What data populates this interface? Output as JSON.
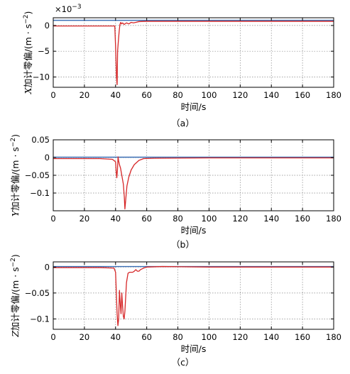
{
  "chart_data": [
    {
      "type": "line",
      "caption": "（a）",
      "xlabel": "时间/s",
      "ylabel_var": "X",
      "ylabel_rest": "加计零偏/(m · s",
      "ylabel_sup": "−2",
      "ylabel_close": ")",
      "exponent_base": "×10",
      "exponent_power": "−3",
      "xlim": [
        0,
        180
      ],
      "ylim": [
        -12,
        1.5
      ],
      "xticks": [
        0,
        20,
        40,
        60,
        80,
        100,
        120,
        140,
        160,
        180
      ],
      "yticks": [
        -10,
        -5,
        0
      ],
      "ytick_labels": [
        "−10",
        "−5",
        "0"
      ],
      "grid": true,
      "series": [
        {
          "color": "#3a6fb5",
          "x": [
            0,
            180
          ],
          "y": [
            1.0,
            1.0
          ]
        },
        {
          "color": "#d62728",
          "x": [
            0,
            39.5,
            40,
            40.6,
            41,
            41.3,
            41.8,
            42.3,
            42.8,
            43.3,
            43.8,
            44.5,
            45.5,
            47,
            48.5,
            50,
            51.5,
            53,
            55,
            60,
            100,
            180
          ],
          "y": [
            -0.1,
            -0.1,
            -4,
            -10,
            -11.5,
            -5,
            -3,
            -1.2,
            0.2,
            0.6,
            0.3,
            0.5,
            0.2,
            0.5,
            0.3,
            0.6,
            0.5,
            0.6,
            0.75,
            0.8,
            0.8,
            0.8
          ]
        }
      ]
    },
    {
      "type": "line",
      "caption": "（b）",
      "xlabel": "时间/s",
      "ylabel_var": "Y",
      "ylabel_rest": "加计零偏/(m · s",
      "ylabel_sup": "−2",
      "ylabel_close": ")",
      "xlim": [
        0,
        180
      ],
      "ylim": [
        -0.15,
        0.05
      ],
      "xticks": [
        0,
        20,
        40,
        60,
        80,
        100,
        120,
        140,
        160,
        180
      ],
      "yticks": [
        0.05,
        0,
        -0.05,
        -0.1
      ],
      "ytick_labels": [
        "0.05",
        "0",
        "−0.05",
        "−0.1"
      ],
      "grid": true,
      "series": [
        {
          "color": "#3a6fb5",
          "x": [
            0,
            180
          ],
          "y": [
            0.001,
            0.001
          ]
        },
        {
          "color": "#d62728",
          "x": [
            0,
            30,
            38,
            40,
            40.4,
            40.8,
            41.2,
            41.6,
            42,
            42.5,
            43.2,
            44,
            45,
            45.6,
            46,
            46.5,
            47.3,
            48.5,
            50,
            52,
            55,
            58,
            65,
            100,
            180
          ],
          "y": [
            -0.003,
            -0.003,
            -0.005,
            -0.012,
            -0.04,
            -0.057,
            -0.035,
            0.002,
            -0.01,
            -0.02,
            -0.03,
            -0.05,
            -0.075,
            -0.11,
            -0.145,
            -0.12,
            -0.08,
            -0.055,
            -0.035,
            -0.02,
            -0.008,
            -0.003,
            -0.002,
            -0.001,
            -0.001
          ]
        }
      ]
    },
    {
      "type": "line",
      "caption": "（c）",
      "xlabel": "时间/s",
      "ylabel_var": "Z",
      "ylabel_rest": "加计零偏/(m · s",
      "ylabel_sup": "−2",
      "ylabel_close": ")",
      "xlim": [
        0,
        180
      ],
      "ylim": [
        -0.12,
        0.01
      ],
      "xticks": [
        0,
        20,
        40,
        60,
        80,
        100,
        120,
        140,
        160,
        180
      ],
      "yticks": [
        0,
        -0.05,
        -0.1
      ],
      "ytick_labels": [
        "0",
        "−0.05",
        "−0.1"
      ],
      "grid": true,
      "series": [
        {
          "color": "#3a6fb5",
          "x": [
            0,
            180
          ],
          "y": [
            0.001,
            0.001
          ]
        },
        {
          "color": "#d62728",
          "x": [
            0,
            30,
            39,
            40,
            40.5,
            41,
            41.5,
            42,
            42.5,
            43,
            43.5,
            44,
            44.5,
            45,
            45.5,
            46,
            47,
            48,
            49,
            50,
            51,
            52,
            53,
            54,
            55,
            56,
            58,
            60,
            70,
            100,
            180
          ],
          "y": [
            -0.001,
            -0.001,
            -0.002,
            -0.01,
            -0.05,
            -0.09,
            -0.113,
            -0.1,
            -0.045,
            -0.07,
            -0.09,
            -0.05,
            -0.075,
            -0.095,
            -0.1,
            -0.085,
            -0.03,
            -0.012,
            -0.01,
            -0.01,
            -0.01,
            -0.008,
            -0.005,
            -0.008,
            -0.008,
            -0.005,
            -0.002,
            0.0,
            0.001,
            0.0,
            0.0
          ]
        }
      ]
    }
  ]
}
